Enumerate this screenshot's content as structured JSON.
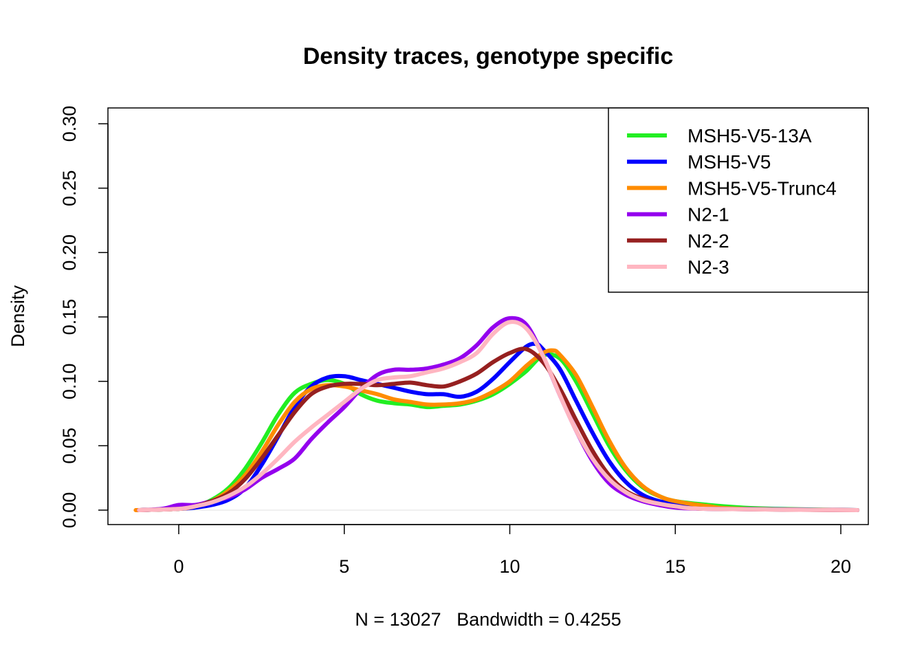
{
  "chart_data": {
    "type": "line",
    "title": "Density traces, genotype specific",
    "xlabel": "N = 13027   Bandwidth = 0.4255",
    "ylabel": "Density",
    "xlim": [
      -1.3,
      20.5
    ],
    "ylim": [
      0,
      0.3
    ],
    "x_ticks": [
      0,
      5,
      10,
      15,
      20
    ],
    "y_ticks": [
      0.0,
      0.05,
      0.1,
      0.15,
      0.2,
      0.25,
      0.3
    ],
    "x_tick_labels": [
      "0",
      "5",
      "10",
      "15",
      "20"
    ],
    "y_tick_labels": [
      "0.00",
      "0.05",
      "0.10",
      "0.15",
      "0.20",
      "0.25",
      "0.30"
    ],
    "grid": false,
    "legend_position": "top-right",
    "series": [
      {
        "name": "MSH5-V5-13A",
        "color": "#22ee22",
        "points": [
          [
            -1.2,
            0
          ],
          [
            0,
            0.001
          ],
          [
            0.5,
            0.003
          ],
          [
            1,
            0.008
          ],
          [
            1.5,
            0.017
          ],
          [
            2,
            0.032
          ],
          [
            2.5,
            0.052
          ],
          [
            3,
            0.074
          ],
          [
            3.5,
            0.091
          ],
          [
            4,
            0.098
          ],
          [
            4.5,
            0.101
          ],
          [
            5,
            0.098
          ],
          [
            5.5,
            0.09
          ],
          [
            6,
            0.085
          ],
          [
            6.5,
            0.083
          ],
          [
            7,
            0.082
          ],
          [
            7.5,
            0.08
          ],
          [
            8,
            0.081
          ],
          [
            8.5,
            0.082
          ],
          [
            9,
            0.085
          ],
          [
            9.5,
            0.09
          ],
          [
            10,
            0.098
          ],
          [
            10.5,
            0.108
          ],
          [
            11,
            0.12
          ],
          [
            11.5,
            0.118
          ],
          [
            12,
            0.1
          ],
          [
            12.5,
            0.075
          ],
          [
            13,
            0.05
          ],
          [
            13.5,
            0.031
          ],
          [
            14,
            0.018
          ],
          [
            14.5,
            0.011
          ],
          [
            15,
            0.007
          ],
          [
            16,
            0.004
          ],
          [
            17,
            0.002
          ],
          [
            18,
            0.001
          ],
          [
            20.5,
            0
          ]
        ]
      },
      {
        "name": "MSH5-V5",
        "color": "#0000ff",
        "points": [
          [
            -1.2,
            0
          ],
          [
            0,
            0.001
          ],
          [
            0.5,
            0.002
          ],
          [
            1,
            0.004
          ],
          [
            1.5,
            0.008
          ],
          [
            2,
            0.017
          ],
          [
            2.5,
            0.035
          ],
          [
            3,
            0.057
          ],
          [
            3.5,
            0.08
          ],
          [
            4,
            0.096
          ],
          [
            4.5,
            0.103
          ],
          [
            5,
            0.104
          ],
          [
            5.5,
            0.101
          ],
          [
            6,
            0.098
          ],
          [
            6.5,
            0.095
          ],
          [
            7,
            0.092
          ],
          [
            7.5,
            0.09
          ],
          [
            8,
            0.09
          ],
          [
            8.5,
            0.088
          ],
          [
            9,
            0.092
          ],
          [
            9.5,
            0.102
          ],
          [
            10,
            0.115
          ],
          [
            10.5,
            0.127
          ],
          [
            10.8,
            0.129
          ],
          [
            11,
            0.125
          ],
          [
            11.5,
            0.11
          ],
          [
            12,
            0.085
          ],
          [
            12.5,
            0.06
          ],
          [
            13,
            0.038
          ],
          [
            13.5,
            0.022
          ],
          [
            14,
            0.012
          ],
          [
            14.5,
            0.007
          ],
          [
            15,
            0.005
          ],
          [
            16,
            0.002
          ],
          [
            17,
            0.001
          ],
          [
            20.5,
            0
          ]
        ]
      },
      {
        "name": "MSH5-V5-Trunc4",
        "color": "#ff8c00",
        "points": [
          [
            -1.3,
            0
          ],
          [
            0,
            0.001
          ],
          [
            0.5,
            0.003
          ],
          [
            1,
            0.007
          ],
          [
            1.5,
            0.015
          ],
          [
            2,
            0.027
          ],
          [
            2.5,
            0.045
          ],
          [
            3,
            0.066
          ],
          [
            3.5,
            0.084
          ],
          [
            4,
            0.094
          ],
          [
            4.5,
            0.097
          ],
          [
            5,
            0.096
          ],
          [
            5.5,
            0.093
          ],
          [
            6,
            0.09
          ],
          [
            6.5,
            0.086
          ],
          [
            7,
            0.084
          ],
          [
            7.5,
            0.082
          ],
          [
            8,
            0.082
          ],
          [
            8.5,
            0.083
          ],
          [
            9,
            0.086
          ],
          [
            9.5,
            0.092
          ],
          [
            10,
            0.1
          ],
          [
            10.5,
            0.112
          ],
          [
            11,
            0.122
          ],
          [
            11.3,
            0.124
          ],
          [
            11.5,
            0.121
          ],
          [
            12,
            0.105
          ],
          [
            12.5,
            0.08
          ],
          [
            13,
            0.054
          ],
          [
            13.5,
            0.033
          ],
          [
            14,
            0.019
          ],
          [
            14.5,
            0.011
          ],
          [
            15,
            0.007
          ],
          [
            16,
            0.003
          ],
          [
            17,
            0.001
          ],
          [
            20.5,
            0
          ]
        ]
      },
      {
        "name": "N2-1",
        "color": "#9400ee",
        "points": [
          [
            -1.2,
            0
          ],
          [
            -0.5,
            0.001
          ],
          [
            0,
            0.004
          ],
          [
            0.5,
            0.004
          ],
          [
            1,
            0.007
          ],
          [
            1.5,
            0.01
          ],
          [
            2,
            0.016
          ],
          [
            2.5,
            0.025
          ],
          [
            3,
            0.032
          ],
          [
            3.5,
            0.04
          ],
          [
            4,
            0.055
          ],
          [
            4.5,
            0.068
          ],
          [
            5,
            0.08
          ],
          [
            5.5,
            0.094
          ],
          [
            6,
            0.105
          ],
          [
            6.5,
            0.109
          ],
          [
            7,
            0.109
          ],
          [
            7.5,
            0.11
          ],
          [
            8,
            0.113
          ],
          [
            8.5,
            0.118
          ],
          [
            9,
            0.128
          ],
          [
            9.5,
            0.142
          ],
          [
            10,
            0.149
          ],
          [
            10.5,
            0.144
          ],
          [
            11,
            0.12
          ],
          [
            11.5,
            0.09
          ],
          [
            12,
            0.062
          ],
          [
            12.5,
            0.038
          ],
          [
            13,
            0.021
          ],
          [
            13.5,
            0.012
          ],
          [
            14,
            0.007
          ],
          [
            14.5,
            0.004
          ],
          [
            15,
            0.002
          ],
          [
            16,
            0.001
          ],
          [
            20.5,
            0
          ]
        ]
      },
      {
        "name": "N2-2",
        "color": "#962020",
        "points": [
          [
            -1.2,
            0
          ],
          [
            0,
            0.001
          ],
          [
            0.5,
            0.003
          ],
          [
            1,
            0.007
          ],
          [
            1.5,
            0.013
          ],
          [
            2,
            0.024
          ],
          [
            2.5,
            0.04
          ],
          [
            3,
            0.058
          ],
          [
            3.5,
            0.076
          ],
          [
            4,
            0.09
          ],
          [
            4.5,
            0.096
          ],
          [
            5,
            0.098
          ],
          [
            5.5,
            0.098
          ],
          [
            6,
            0.097
          ],
          [
            6.5,
            0.098
          ],
          [
            7,
            0.099
          ],
          [
            7.5,
            0.097
          ],
          [
            8,
            0.096
          ],
          [
            8.5,
            0.1
          ],
          [
            9,
            0.106
          ],
          [
            9.5,
            0.115
          ],
          [
            10,
            0.122
          ],
          [
            10.5,
            0.125
          ],
          [
            11,
            0.115
          ],
          [
            11.5,
            0.095
          ],
          [
            12,
            0.07
          ],
          [
            12.5,
            0.046
          ],
          [
            13,
            0.027
          ],
          [
            13.5,
            0.015
          ],
          [
            14,
            0.009
          ],
          [
            14.5,
            0.005
          ],
          [
            15,
            0.003
          ],
          [
            16,
            0.001
          ],
          [
            20.5,
            0
          ]
        ]
      },
      {
        "name": "N2-3",
        "color": "#ffb6c1",
        "points": [
          [
            -1.2,
            0
          ],
          [
            0,
            0.001
          ],
          [
            0.5,
            0.003
          ],
          [
            1,
            0.006
          ],
          [
            1.5,
            0.011
          ],
          [
            2,
            0.018
          ],
          [
            2.5,
            0.028
          ],
          [
            3,
            0.04
          ],
          [
            3.5,
            0.053
          ],
          [
            4,
            0.064
          ],
          [
            4.5,
            0.074
          ],
          [
            5,
            0.084
          ],
          [
            5.5,
            0.094
          ],
          [
            6,
            0.101
          ],
          [
            6.5,
            0.103
          ],
          [
            7,
            0.104
          ],
          [
            7.5,
            0.107
          ],
          [
            8,
            0.11
          ],
          [
            8.5,
            0.115
          ],
          [
            9,
            0.122
          ],
          [
            9.5,
            0.137
          ],
          [
            10,
            0.146
          ],
          [
            10.5,
            0.141
          ],
          [
            11,
            0.12
          ],
          [
            11.5,
            0.09
          ],
          [
            12,
            0.062
          ],
          [
            12.5,
            0.04
          ],
          [
            13,
            0.024
          ],
          [
            13.5,
            0.014
          ],
          [
            14,
            0.008
          ],
          [
            14.5,
            0.005
          ],
          [
            15,
            0.003
          ],
          [
            16,
            0.001
          ],
          [
            20.5,
            0
          ]
        ]
      }
    ]
  }
}
